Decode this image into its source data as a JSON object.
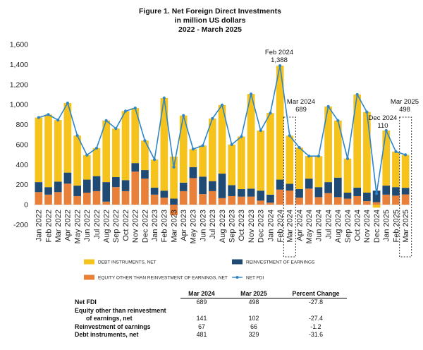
{
  "chart_data": {
    "type": "bar",
    "stacked": true,
    "title": "Figure 1. Net Foreign Direct Investments",
    "subtitle": [
      "in million US dollars",
      "2022 - March 2025"
    ],
    "categories": [
      "Jan 2022",
      "Feb 2022",
      "Mar 2022",
      "Apr 2022",
      "May 2022",
      "Jun 2022",
      "Jul 2022",
      "Aug 2022",
      "Sep 2022",
      "Oct 2022",
      "Nov 2022",
      "Dec 2022",
      "Jan 2023",
      "Feb 2023",
      "Mar 2023",
      "Apr 2023",
      "May 2023",
      "Jun 2023",
      "Jul 2023",
      "Aug 2023",
      "Sep 2023",
      "Oct 2023",
      "Nov 2023",
      "Dec 2023",
      "Jan 2024",
      "Feb 2024",
      "Mar 2024",
      "Apr 2024",
      "May 2024",
      "Jun 2024",
      "Jul 2024",
      "Aug 2024",
      "Sep 2024",
      "Oct 2024",
      "Nov 2024",
      "Dec 2024",
      "Jan 2025",
      "Feb 2025",
      "Mar 2025"
    ],
    "series": [
      {
        "name": "EQUITY OTHER THAN REINVESTMENT OF EARNINGS, NET",
        "kind": "bar",
        "color": "#E8803A",
        "values": [
          125,
          100,
          125,
          210,
          85,
          120,
          135,
          30,
          175,
          135,
          330,
          260,
          100,
          70,
          -105,
          135,
          265,
          105,
          135,
          65,
          85,
          80,
          80,
          40,
          20,
          150,
          141,
          70,
          160,
          75,
          115,
          75,
          60,
          85,
          35,
          25,
          100,
          90,
          102
        ]
      },
      {
        "name": "REINVESTMENT OF EARNINGS",
        "kind": "bar",
        "color": "#1F4A73",
        "values": [
          100,
          75,
          105,
          110,
          105,
          130,
          150,
          195,
          100,
          110,
          85,
          85,
          70,
          70,
          60,
          85,
          110,
          175,
          100,
          245,
          110,
          75,
          80,
          100,
          80,
          100,
          67,
          85,
          100,
          100,
          110,
          195,
          60,
          85,
          85,
          115,
          90,
          85,
          66
        ]
      },
      {
        "name": "DEBT INSTRUMENTS, NET",
        "kind": "bar",
        "color": "#F6C21C",
        "values": [
          645,
          725,
          615,
          695,
          500,
          245,
          280,
          615,
          485,
          690,
          550,
          295,
          280,
          925,
          420,
          670,
          180,
          310,
          625,
          685,
          405,
          525,
          945,
          600,
          815,
          1138,
          481,
          415,
          225,
          310,
          755,
          570,
          340,
          930,
          805,
          -30,
          550,
          355,
          329
        ]
      },
      {
        "name": "NET FDI",
        "kind": "line",
        "color": "#2E86C8",
        "values": [
          870,
          900,
          845,
          1015,
          690,
          495,
          565,
          840,
          760,
          935,
          965,
          640,
          450,
          1065,
          375,
          890,
          555,
          590,
          860,
          995,
          600,
          680,
          1105,
          740,
          915,
          1388,
          689,
          570,
          485,
          485,
          980,
          840,
          460,
          1100,
          925,
          110,
          740,
          530,
          498
        ]
      }
    ],
    "ylim": [
      -200,
      1600
    ],
    "y_ticks": [
      1600,
      1400,
      1200,
      1000,
      800,
      600,
      400,
      200,
      0,
      -200
    ],
    "y_tick_labels": [
      "1,600",
      "1,400",
      "1,200",
      "1,000",
      "800",
      "600",
      "400",
      "200",
      "0",
      "-200"
    ],
    "grid": false,
    "legend_position": "bottom",
    "annotations": [
      {
        "category": "Feb 2024",
        "label": "Feb 2024",
        "value": "1,388"
      },
      {
        "category": "Mar 2024",
        "label": "Mar 2024",
        "value": "689"
      },
      {
        "category": "Dec 2024",
        "label": "Dec 2024",
        "value": "110"
      },
      {
        "category": "Mar 2025",
        "label": "Mar 2025",
        "value": "498"
      }
    ],
    "highlighted_categories": [
      "Mar 2024",
      "Mar 2025"
    ]
  },
  "summary_table": {
    "headers": [
      "Mar 2024",
      "Mar 2025",
      "Percent Change"
    ],
    "rows": [
      {
        "label": "Net FDI",
        "values": [
          "689",
          "498",
          "-27.8"
        ]
      },
      {
        "label": "Equity other than reinvestment",
        "label_continued": "of earnings, net",
        "values": [
          "141",
          "102",
          "-27.4"
        ]
      },
      {
        "label": "Reinvestment of earnings",
        "values": [
          "67",
          "66",
          "-1.2"
        ]
      },
      {
        "label": "Debt instruments, net",
        "values": [
          "481",
          "329",
          "-31.6"
        ]
      }
    ]
  }
}
